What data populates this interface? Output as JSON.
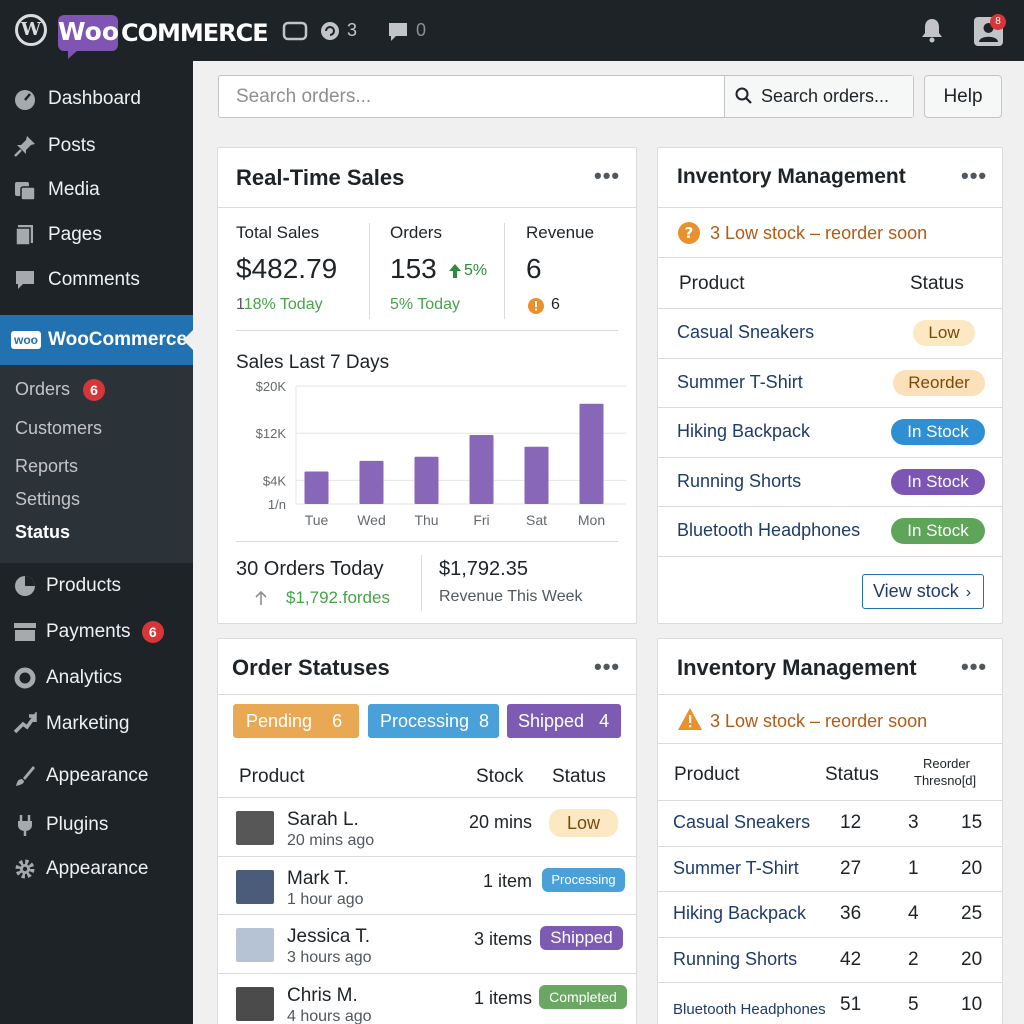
{
  "topbar": {
    "brand_badge": "Woo",
    "brand_text": "Commerce",
    "updates_count": "3",
    "comments_count": "0",
    "notification_count": "8"
  },
  "sidebar": {
    "items": [
      {
        "label": "Dashboard",
        "icon": "dashboard-icon"
      },
      {
        "label": "Posts",
        "icon": "pin-icon"
      },
      {
        "label": "Media",
        "icon": "media-icon"
      },
      {
        "label": "Pages",
        "icon": "pages-icon"
      },
      {
        "label": "Comments",
        "icon": "comment-icon"
      }
    ],
    "woo": {
      "badge": "woo",
      "label": "WooCommerce"
    },
    "sub": [
      {
        "label": "Orders",
        "badge": "6"
      },
      {
        "label": "Customers"
      },
      {
        "label": "Reports"
      },
      {
        "label": "Settings"
      },
      {
        "label": "Status"
      }
    ],
    "lower": [
      {
        "label": "Products",
        "icon": "products-icon"
      },
      {
        "label": "Payments",
        "icon": "payments-icon",
        "badge": "6"
      },
      {
        "label": "Analytics",
        "icon": "analytics-icon"
      },
      {
        "label": "Marketing",
        "icon": "marketing-icon"
      },
      {
        "label": "Appearance",
        "icon": "brush-icon"
      },
      {
        "label": "Plugins",
        "icon": "plug-icon"
      },
      {
        "label": "Appearance",
        "icon": "gear-icon"
      }
    ]
  },
  "search": {
    "placeholder": "Search orders...",
    "button_label": "Search orders...",
    "help": "Help"
  },
  "sales": {
    "title": "Real-Time Sales",
    "total_label": "Total Sales",
    "total_value": "$482.79",
    "total_delta": "18% Today",
    "total_delta_prefix": "1",
    "orders_label": "Orders",
    "orders_value": "153",
    "orders_change": "5%",
    "orders_delta": "5% Today",
    "revenue_label": "Revenue",
    "revenue_value": "6",
    "revenue_alert": "6",
    "chart_title": "Sales Last 7 Days",
    "orders_today": "30 Orders Today",
    "orders_today_sub": "$1,792.fordes",
    "week_revenue": "$1,792.35",
    "week_revenue_label": "Revenue This Week"
  },
  "chart_data": {
    "type": "bar",
    "categories": [
      "Tue",
      "Wed",
      "Thu",
      "Fri",
      "Sat",
      "Mon"
    ],
    "values": [
      5.5,
      7.3,
      8.0,
      11.7,
      9.7,
      17.0
    ],
    "ylim": [
      0,
      20
    ],
    "yticks": [
      "$20K",
      "$12K",
      "$4K",
      "1/n"
    ],
    "color": "#8866b8",
    "grid": true
  },
  "inventory1": {
    "title": "Inventory Management",
    "alert": "3 Low stock – reorder soon",
    "col_product": "Product",
    "col_status": "Status",
    "rows": [
      {
        "product": "Casual Sneakers",
        "status": "Low"
      },
      {
        "product": "Summer T-Shirt",
        "status": "Reorder"
      },
      {
        "product": "Hiking Backpack",
        "status": "In Stock"
      },
      {
        "product": "Running Shorts",
        "status": "In Stock"
      },
      {
        "product": "Bluetooth Headphones",
        "status": "In Stock"
      }
    ],
    "view_stock": "View stock"
  },
  "orders": {
    "title": "Order Statuses",
    "tabs": [
      {
        "label": "Pending",
        "count": "6"
      },
      {
        "label": "Processing",
        "count": "8"
      },
      {
        "label": "Shipped",
        "count": "4"
      }
    ],
    "col_product": "Product",
    "col_stock": "Stock",
    "col_status": "Status",
    "rows": [
      {
        "name": "Sarah L.",
        "time": "20 mins ago",
        "stock": "20 mins",
        "status": "Low"
      },
      {
        "name": "Mark T.",
        "time": "1 hour ago",
        "stock": "1 item",
        "status": "Processing"
      },
      {
        "name": "Jessica T.",
        "time": "3 hours ago",
        "stock": "3 items",
        "status": "Shipped"
      },
      {
        "name": "Chris M.",
        "time": "4 hours ago",
        "stock": "1 items",
        "status": "Completed"
      }
    ]
  },
  "inventory2": {
    "title": "Inventory Management",
    "alert": "3 Low stock – reorder soon",
    "col_product": "Product",
    "col_status": "Status",
    "col_reorder_1": "Reorder",
    "col_reorder_2": "Thresno[d]",
    "rows": [
      {
        "product": "Casual Sneakers",
        "a": "12",
        "b": "3",
        "c": "15"
      },
      {
        "product": "Summer T-Shirt",
        "a": "27",
        "b": "1",
        "c": "20"
      },
      {
        "product": "Hiking Backpack",
        "a": "36",
        "b": "4",
        "c": "25"
      },
      {
        "product": "Running Shorts",
        "a": "42",
        "b": "2",
        "c": "20"
      },
      {
        "product": "Bluetooth Headphones",
        "a": "51",
        "b": "5",
        "c": "10"
      }
    ]
  },
  "colors": {
    "sidebar": "#1d2327",
    "accent": "#2271b1",
    "woo_purple": "#7f54b3",
    "green": "#46a34a",
    "orange": "#b65a12",
    "link": "#1e3c6b"
  }
}
